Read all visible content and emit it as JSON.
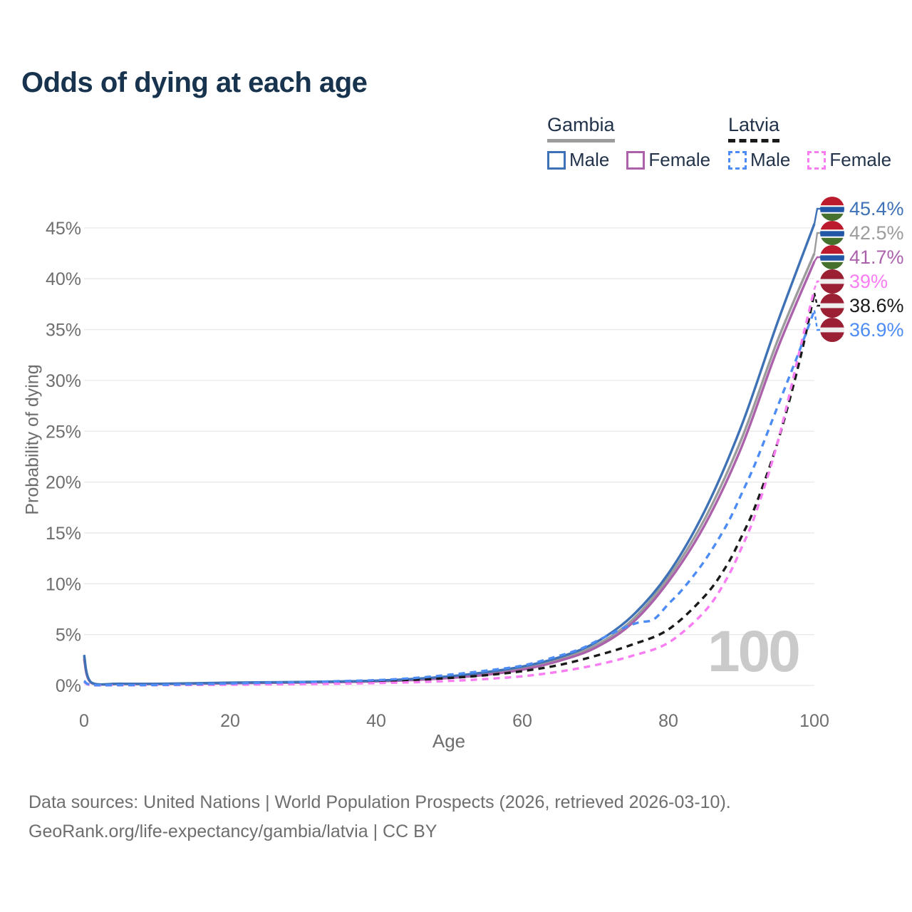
{
  "header": {
    "title": "Odds of dying at each age"
  },
  "legend": {
    "groups": [
      {
        "label": "Gambia",
        "line_style": "solid",
        "line_color": "#9c9c9c",
        "items": [
          {
            "label": "Male",
            "color": "#3e71b5",
            "dash": false
          },
          {
            "label": "Female",
            "color": "#ab62ab",
            "dash": false
          }
        ]
      },
      {
        "label": "Latvia",
        "line_style": "dashed",
        "line_color": "#1a1a1a",
        "items": [
          {
            "label": "Male",
            "color": "#4e8cf5",
            "dash": true
          },
          {
            "label": "Female",
            "color": "#f97df2",
            "dash": true
          }
        ]
      }
    ]
  },
  "chart": {
    "y_axis_label": "Probability of dying",
    "x_axis_label": "Age",
    "watermark": "100",
    "y_ticks_pct": [
      0,
      5,
      10,
      15,
      20,
      25,
      30,
      35,
      40,
      45
    ],
    "x_ticks_age": [
      0,
      20,
      40,
      60,
      80,
      100
    ],
    "grid_color": "#e8e8e8",
    "tick_color": "#6e6e6e"
  },
  "chart_data": {
    "type": "line",
    "title": "Odds of dying at each age",
    "xlabel": "Age",
    "ylabel": "Probability of dying",
    "xlim": [
      0,
      100
    ],
    "ylim_pct": [
      0,
      47
    ],
    "grid": "horizontal",
    "legend_position": "top-right",
    "series": [
      {
        "slug": "gambia",
        "name": "Gambia",
        "color": "#9c9c9c",
        "dash": "solid",
        "points": [
          [
            0,
            2.8
          ],
          [
            1,
            0.26
          ],
          [
            5,
            0.16
          ],
          [
            10,
            0.15
          ],
          [
            15,
            0.19
          ],
          [
            20,
            0.24
          ],
          [
            25,
            0.28
          ],
          [
            30,
            0.31
          ],
          [
            35,
            0.36
          ],
          [
            40,
            0.43
          ],
          [
            45,
            0.57
          ],
          [
            50,
            0.8
          ],
          [
            55,
            1.15
          ],
          [
            60,
            1.68
          ],
          [
            65,
            2.55
          ],
          [
            70,
            3.9
          ],
          [
            75,
            6.4
          ],
          [
            80,
            10.6
          ],
          [
            85,
            16.4
          ],
          [
            90,
            24.2
          ],
          [
            95,
            34.0
          ],
          [
            100,
            42.5
          ]
        ]
      },
      {
        "slug": "gambia-female",
        "name": "Gambia Female",
        "color": "#ab62ab",
        "dash": "solid",
        "points": [
          [
            0,
            2.6
          ],
          [
            1,
            0.24
          ],
          [
            5,
            0.15
          ],
          [
            10,
            0.14
          ],
          [
            15,
            0.17
          ],
          [
            20,
            0.21
          ],
          [
            25,
            0.25
          ],
          [
            30,
            0.28
          ],
          [
            35,
            0.33
          ],
          [
            40,
            0.4
          ],
          [
            45,
            0.52
          ],
          [
            50,
            0.73
          ],
          [
            55,
            1.05
          ],
          [
            60,
            1.55
          ],
          [
            65,
            2.4
          ],
          [
            70,
            3.7
          ],
          [
            75,
            6.1
          ],
          [
            80,
            10.2
          ],
          [
            85,
            15.8
          ],
          [
            90,
            23.4
          ],
          [
            95,
            33.2
          ],
          [
            100,
            41.7
          ]
        ]
      },
      {
        "slug": "gambia-male",
        "name": "Gambia Male",
        "color": "#3e71b5",
        "dash": "solid",
        "points": [
          [
            0,
            3.0
          ],
          [
            1,
            0.28
          ],
          [
            5,
            0.17
          ],
          [
            10,
            0.16
          ],
          [
            15,
            0.21
          ],
          [
            20,
            0.27
          ],
          [
            25,
            0.31
          ],
          [
            30,
            0.34
          ],
          [
            35,
            0.39
          ],
          [
            40,
            0.47
          ],
          [
            45,
            0.63
          ],
          [
            50,
            0.9
          ],
          [
            55,
            1.3
          ],
          [
            60,
            1.85
          ],
          [
            65,
            2.75
          ],
          [
            70,
            4.2
          ],
          [
            75,
            6.8
          ],
          [
            80,
            11.0
          ],
          [
            85,
            17.2
          ],
          [
            90,
            25.5
          ],
          [
            95,
            35.8
          ],
          [
            100,
            45.4
          ]
        ]
      },
      {
        "slug": "latvia",
        "name": "Latvia",
        "color": "#1a1a1a",
        "dash": "dashed",
        "points": [
          [
            0,
            0.4
          ],
          [
            1,
            0.04
          ],
          [
            5,
            0.03
          ],
          [
            10,
            0.04
          ],
          [
            15,
            0.08
          ],
          [
            20,
            0.13
          ],
          [
            25,
            0.18
          ],
          [
            30,
            0.23
          ],
          [
            35,
            0.3
          ],
          [
            40,
            0.38
          ],
          [
            45,
            0.52
          ],
          [
            50,
            0.73
          ],
          [
            55,
            1.0
          ],
          [
            60,
            1.4
          ],
          [
            65,
            2.0
          ],
          [
            70,
            2.9
          ],
          [
            75,
            4.0
          ],
          [
            80,
            5.5
          ],
          [
            85,
            8.8
          ],
          [
            88,
            11.8
          ],
          [
            90,
            14.6
          ],
          [
            92,
            17.8
          ],
          [
            95,
            24.0
          ],
          [
            98,
            32.0
          ],
          [
            100,
            38.6
          ]
        ]
      },
      {
        "slug": "latvia-female",
        "name": "Latvia Female",
        "color": "#f97df2",
        "dash": "dashed",
        "points": [
          [
            0,
            0.35
          ],
          [
            1,
            0.03
          ],
          [
            5,
            0.02
          ],
          [
            10,
            0.03
          ],
          [
            15,
            0.05
          ],
          [
            20,
            0.07
          ],
          [
            25,
            0.1
          ],
          [
            30,
            0.13
          ],
          [
            35,
            0.17
          ],
          [
            40,
            0.23
          ],
          [
            45,
            0.31
          ],
          [
            50,
            0.44
          ],
          [
            55,
            0.63
          ],
          [
            60,
            0.9
          ],
          [
            65,
            1.35
          ],
          [
            70,
            2.0
          ],
          [
            75,
            2.9
          ],
          [
            80,
            4.2
          ],
          [
            85,
            7.3
          ],
          [
            88,
            10.5
          ],
          [
            90,
            13.5
          ],
          [
            92,
            17.0
          ],
          [
            95,
            24.0
          ],
          [
            98,
            33.0
          ],
          [
            100,
            39.0
          ]
        ]
      },
      {
        "slug": "latvia-male",
        "name": "Latvia Male",
        "color": "#4e8cf5",
        "dash": "dashed",
        "points": [
          [
            0,
            0.45
          ],
          [
            1,
            0.05
          ],
          [
            5,
            0.04
          ],
          [
            10,
            0.05
          ],
          [
            15,
            0.11
          ],
          [
            20,
            0.19
          ],
          [
            25,
            0.26
          ],
          [
            30,
            0.33
          ],
          [
            35,
            0.42
          ],
          [
            40,
            0.52
          ],
          [
            45,
            0.72
          ],
          [
            50,
            1.05
          ],
          [
            55,
            1.45
          ],
          [
            60,
            1.95
          ],
          [
            65,
            2.9
          ],
          [
            68,
            3.6
          ],
          [
            70,
            4.3
          ],
          [
            72,
            5.0
          ],
          [
            74,
            5.7
          ],
          [
            76,
            6.2
          ],
          [
            78,
            6.5
          ],
          [
            80,
            8.0
          ],
          [
            82,
            9.5
          ],
          [
            85,
            12.3
          ],
          [
            88,
            15.8
          ],
          [
            90,
            18.8
          ],
          [
            92,
            22.0
          ],
          [
            95,
            27.5
          ],
          [
            98,
            33.0
          ],
          [
            100,
            36.9
          ]
        ]
      }
    ],
    "end_labels": [
      {
        "text": "45.4%",
        "color": "#3e71b5",
        "flag": "gambia",
        "series": "gambia-male"
      },
      {
        "text": "42.5%",
        "color": "#9c9c9c",
        "flag": "gambia",
        "series": "gambia"
      },
      {
        "text": "41.7%",
        "color": "#ab62ab",
        "flag": "gambia",
        "series": "gambia-female"
      },
      {
        "text": "39%",
        "color": "#f97df2",
        "flag": "latvia",
        "series": "latvia-female"
      },
      {
        "text": "38.6%",
        "color": "#1a1a1a",
        "flag": "latvia",
        "series": "latvia"
      },
      {
        "text": "36.9%",
        "color": "#4e8cf5",
        "flag": "latvia",
        "series": "latvia-male"
      }
    ],
    "flags": {
      "gambia": {
        "stripes": [
          [
            "#bb1b2d",
            0,
            0.36
          ],
          [
            "#ffffff",
            0.36,
            0.42
          ],
          [
            "#2257a8",
            0.42,
            0.64
          ],
          [
            "#ffffff",
            0.64,
            0.7
          ],
          [
            "#45702d",
            0.7,
            1
          ]
        ]
      },
      "latvia": {
        "stripes": [
          [
            "#9b2034",
            0,
            0.4
          ],
          [
            "#efefef",
            0.4,
            0.6
          ],
          [
            "#9b2034",
            0.6,
            1
          ]
        ]
      }
    }
  },
  "footer": {
    "line1": "Data sources: United Nations | World Population Prospects (2026, retrieved 2026-03-10).",
    "line2": "GeoRank.org/life-expectancy/gambia/latvia | CC BY"
  }
}
